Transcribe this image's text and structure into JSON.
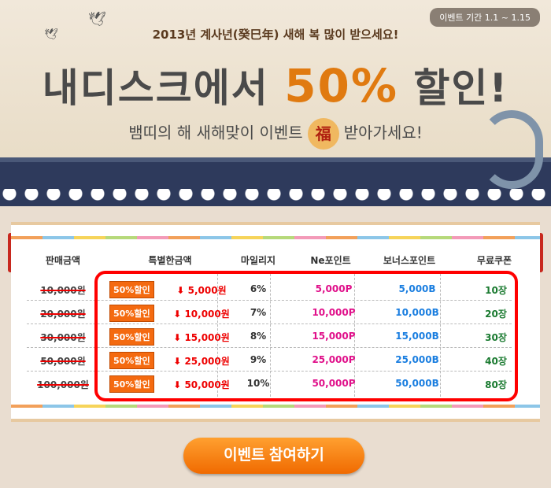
{
  "banner": {
    "event_period": "이벤트 기간  1.1 ~ 1.15",
    "subtitle": "2013년 계사년(癸巳年) 새해 복 많이 받으세요!",
    "title_pre": "내디스크에서 ",
    "title_pct": "50%",
    "title_post": " 할인!",
    "tagline_pre": "뱀띠의 해 새해맞이 이벤트",
    "tagline_char": "福",
    "tagline_post": "받아가세요!"
  },
  "table": {
    "headers": [
      "판매금액",
      "특별한금액",
      "마일리지",
      "Ne포인트",
      "보너스포인트",
      "무료쿠폰"
    ],
    "badge": "50%할인",
    "rows": [
      {
        "original": "10,000원",
        "special": "5,000원",
        "mileage": "6%",
        "ne_point": "5,000P",
        "bonus": "5,000B",
        "coupon": "10장"
      },
      {
        "original": "20,000원",
        "special": "10,000원",
        "mileage": "7%",
        "ne_point": "10,000P",
        "bonus": "10,000B",
        "coupon": "20장"
      },
      {
        "original": "30,000원",
        "special": "15,000원",
        "mileage": "8%",
        "ne_point": "15,000P",
        "bonus": "15,000B",
        "coupon": "30장"
      },
      {
        "original": "50,000원",
        "special": "25,000원",
        "mileage": "9%",
        "ne_point": "25,000P",
        "bonus": "25,000B",
        "coupon": "40장"
      },
      {
        "original": "100,000원",
        "special": "50,000원",
        "mileage": "10%",
        "ne_point": "50,000P",
        "bonus": "50,000B",
        "coupon": "80장"
      }
    ]
  },
  "cta": {
    "label": "이벤트 참여하기"
  },
  "colors": {
    "highlight_box": "#ff0000",
    "ne_point": "#e0108a",
    "bonus": "#1a7ee0",
    "coupon": "#1a7a30",
    "button": "#f47a10"
  }
}
